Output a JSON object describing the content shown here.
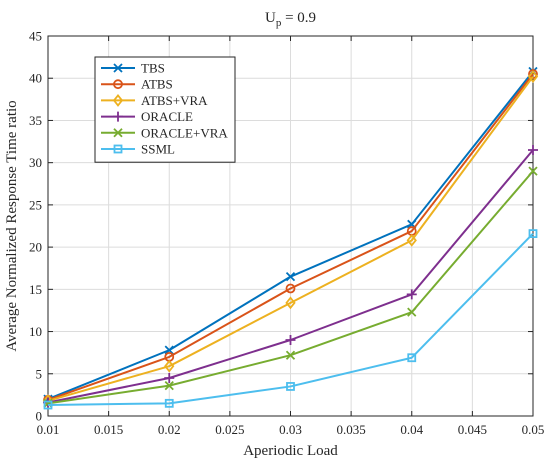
{
  "chart_data": {
    "type": "line",
    "title": "U",
    "title_subscript": "p",
    "title_suffix": " = 0.9",
    "xlabel": "Aperiodic Load",
    "ylabel": "Average Normalized Response Time ratio",
    "xlim": [
      0.01,
      0.05
    ],
    "ylim": [
      0,
      45
    ],
    "xticks": [
      "0.01",
      "0.015",
      "0.02",
      "0.025",
      "0.03",
      "0.035",
      "0.04",
      "0.045",
      "0.05"
    ],
    "yticks": [
      "0",
      "5",
      "10",
      "15",
      "20",
      "25",
      "30",
      "35",
      "40",
      "45"
    ],
    "grid": true,
    "legend_position": "top-left",
    "x": [
      0.01,
      0.02,
      0.03,
      0.04,
      0.05
    ],
    "series": [
      {
        "name": "TBS",
        "values": [
          2.0,
          7.8,
          16.5,
          22.7,
          40.8
        ],
        "color": "#0072BD",
        "marker": "x"
      },
      {
        "name": "ATBS",
        "values": [
          1.9,
          7.0,
          15.1,
          21.9,
          40.5
        ],
        "color": "#D95319",
        "marker": "o"
      },
      {
        "name": "ATBS+VRA",
        "values": [
          1.8,
          5.9,
          13.4,
          20.8,
          40.2
        ],
        "color": "#EDB120",
        "marker": "diamond"
      },
      {
        "name": "ORACLE",
        "values": [
          1.6,
          4.5,
          9.0,
          14.4,
          31.5
        ],
        "color": "#7E2F8E",
        "marker": "plus"
      },
      {
        "name": "ORACLE+VRA",
        "values": [
          1.5,
          3.6,
          7.2,
          12.3,
          29.0
        ],
        "color": "#77AC30",
        "marker": "x"
      },
      {
        "name": "SSML",
        "values": [
          1.3,
          1.5,
          3.5,
          6.9,
          21.6
        ],
        "color": "#4DBEEE",
        "marker": "square"
      }
    ]
  }
}
